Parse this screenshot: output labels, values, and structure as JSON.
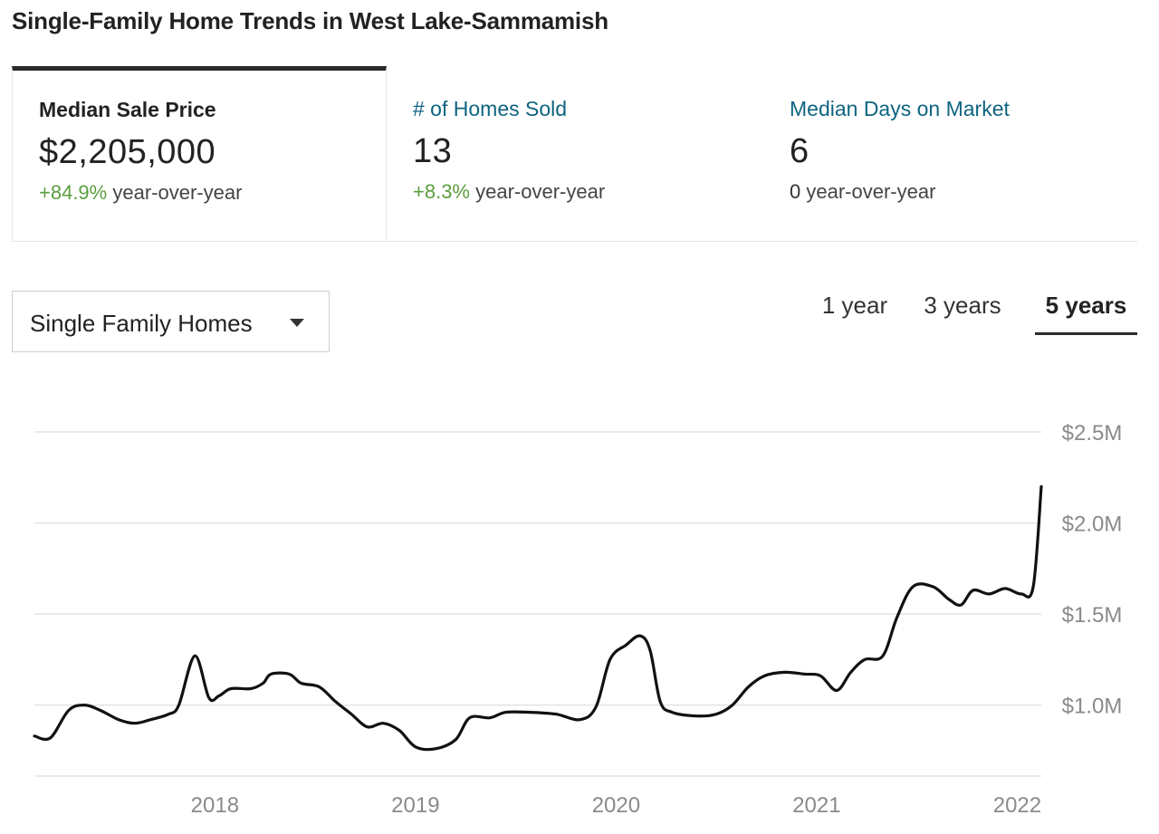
{
  "page": {
    "title": "Single-Family Home Trends in West Lake-Sammamish"
  },
  "stats": [
    {
      "label": "Median Sale Price",
      "value": "$2,205,000",
      "delta": "+84.9%",
      "suffix": " year-over-year"
    },
    {
      "label": "# of Homes Sold",
      "value": "13",
      "delta": "+8.3%",
      "suffix": " year-over-year"
    },
    {
      "label": "Median Days on Market",
      "value": "6",
      "delta": "0",
      "suffix": " year-over-year"
    }
  ],
  "property_type": {
    "selected": "Single Family Homes"
  },
  "range_tabs": [
    {
      "label": "1 year"
    },
    {
      "label": "3 years"
    },
    {
      "label": "5 years"
    }
  ],
  "colors": {
    "line": "#111111",
    "grid": "#e3e3e3",
    "axis_text": "#8a8a8a",
    "positive": "#5a9e3e",
    "accent_link": "#0e6480"
  },
  "chart_data": {
    "type": "line",
    "title": "",
    "xlabel": "",
    "ylabel": "",
    "x_ticks": [
      "2018",
      "2019",
      "2020",
      "2021",
      "2022"
    ],
    "x_tick_values": [
      2018,
      2019,
      2020,
      2021,
      2022
    ],
    "xlim": [
      2017.1,
      2022.12
    ],
    "y_ticks": [
      "$1.0M",
      "$1.5M",
      "$2.0M",
      "$2.5M"
    ],
    "y_tick_values": [
      1.0,
      1.5,
      2.0,
      2.5
    ],
    "ylim": [
      0.61,
      2.5
    ],
    "grid": true,
    "y_axis_position": "right",
    "series": [
      {
        "unit": "millions USD",
        "points": [
          [
            2017.1,
            0.83
          ],
          [
            2017.18,
            0.82
          ],
          [
            2017.27,
            0.97
          ],
          [
            2017.35,
            1.0
          ],
          [
            2017.43,
            0.97
          ],
          [
            2017.52,
            0.92
          ],
          [
            2017.6,
            0.9
          ],
          [
            2017.68,
            0.92
          ],
          [
            2017.77,
            0.95
          ],
          [
            2017.82,
            1.0
          ],
          [
            2017.9,
            1.27
          ],
          [
            2017.97,
            1.04
          ],
          [
            2018.02,
            1.05
          ],
          [
            2018.08,
            1.09
          ],
          [
            2018.18,
            1.09
          ],
          [
            2018.24,
            1.12
          ],
          [
            2018.28,
            1.17
          ],
          [
            2018.37,
            1.17
          ],
          [
            2018.43,
            1.12
          ],
          [
            2018.52,
            1.1
          ],
          [
            2018.6,
            1.02
          ],
          [
            2018.68,
            0.95
          ],
          [
            2018.76,
            0.88
          ],
          [
            2018.84,
            0.9
          ],
          [
            2018.92,
            0.86
          ],
          [
            2019.0,
            0.77
          ],
          [
            2019.1,
            0.76
          ],
          [
            2019.2,
            0.81
          ],
          [
            2019.27,
            0.93
          ],
          [
            2019.37,
            0.93
          ],
          [
            2019.45,
            0.96
          ],
          [
            2019.57,
            0.96
          ],
          [
            2019.7,
            0.95
          ],
          [
            2019.82,
            0.92
          ],
          [
            2019.9,
            0.99
          ],
          [
            2019.97,
            1.25
          ],
          [
            2020.05,
            1.33
          ],
          [
            2020.12,
            1.38
          ],
          [
            2020.17,
            1.3
          ],
          [
            2020.22,
            1.02
          ],
          [
            2020.28,
            0.96
          ],
          [
            2020.4,
            0.94
          ],
          [
            2020.5,
            0.95
          ],
          [
            2020.58,
            1.0
          ],
          [
            2020.66,
            1.1
          ],
          [
            2020.74,
            1.16
          ],
          [
            2020.84,
            1.18
          ],
          [
            2020.94,
            1.17
          ],
          [
            2021.02,
            1.16
          ],
          [
            2021.1,
            1.08
          ],
          [
            2021.17,
            1.18
          ],
          [
            2021.24,
            1.25
          ],
          [
            2021.33,
            1.27
          ],
          [
            2021.4,
            1.48
          ],
          [
            2021.48,
            1.65
          ],
          [
            2021.58,
            1.65
          ],
          [
            2021.66,
            1.58
          ],
          [
            2021.72,
            1.55
          ],
          [
            2021.78,
            1.63
          ],
          [
            2021.86,
            1.61
          ],
          [
            2021.94,
            1.64
          ],
          [
            2022.02,
            1.61
          ],
          [
            2022.08,
            1.65
          ],
          [
            2022.12,
            2.2
          ]
        ]
      }
    ]
  }
}
